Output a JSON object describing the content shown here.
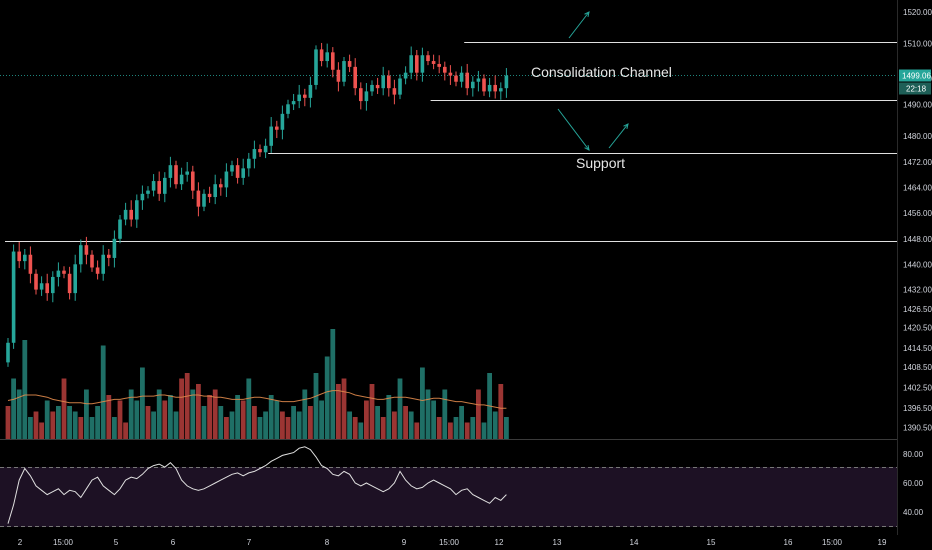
{
  "chart_data": {
    "type": "candlestick",
    "price_axis": {
      "ylim": [
        1386,
        1522
      ],
      "ticks": [
        "1520.00",
        "1510.00",
        "1498.00",
        "1490.00",
        "1480.00",
        "1472.00",
        "1464.00",
        "1456.00",
        "1448.00",
        "1440.00",
        "1432.00",
        "1426.50",
        "1420.50",
        "1414.50",
        "1408.50",
        "1402.50",
        "1396.50",
        "1390.50"
      ]
    },
    "time_axis": {
      "ticks": [
        "2",
        "15:00",
        "5",
        "6",
        "7",
        "8",
        "9",
        "15:00",
        "12",
        "13",
        "14",
        "15",
        "16",
        "15:00",
        "19"
      ]
    },
    "last_price": {
      "value": 1499.06,
      "label": "1499.06",
      "countdown": "22:18"
    },
    "levels": [
      {
        "price": 1510.4,
        "from_bar": 82
      },
      {
        "price": 1491.2,
        "from_bar": 76
      },
      {
        "price": 1474.8,
        "from_bar": 47
      },
      {
        "price": 1447.2,
        "from_bar": 0
      }
    ],
    "annotations": {
      "channel": "Consolidation Channel",
      "support": "Support"
    },
    "colors": {
      "up": "#26a69a",
      "down": "#ef5350",
      "vol_up": "#1f6f66",
      "vol_down": "#9b3533",
      "rsi_line": "#e0e0e0",
      "rsi_band": "#1d1124",
      "level": "#e0e0e0",
      "arrow": "#26a69a",
      "last_price_tag": "#26a69a"
    },
    "candles_close": [
      1416,
      1444,
      1441,
      1443,
      1437,
      1432,
      1434,
      1431,
      1436,
      1438,
      1437,
      1431,
      1440,
      1446,
      1443,
      1439,
      1437,
      1443,
      1442,
      1448,
      1454,
      1457,
      1454,
      1460,
      1462,
      1463,
      1466,
      1462,
      1467,
      1471,
      1465,
      1468,
      1469,
      1463,
      1458,
      1462,
      1461,
      1465,
      1464,
      1469,
      1471,
      1467,
      1470,
      1473,
      1476,
      1475,
      1477,
      1483,
      1482,
      1487,
      1490,
      1491,
      1493,
      1492,
      1496,
      1508,
      1504,
      1507,
      1501,
      1497,
      1504,
      1502,
      1495,
      1491,
      1494,
      1496,
      1495,
      1499,
      1495,
      1493,
      1498,
      1500,
      1506,
      1500,
      1506,
      1504,
      1503,
      1502,
      1500,
      1499,
      1497,
      1500,
      1495,
      1497,
      1498,
      1494,
      1496,
      1494,
      1495,
      1499
    ],
    "volume": [
      {
        "v": 0.3,
        "up": false
      },
      {
        "v": 0.55,
        "up": true
      },
      {
        "v": 0.45,
        "up": true
      },
      {
        "v": 0.9,
        "up": true
      },
      {
        "v": 0.2,
        "up": true
      },
      {
        "v": 0.25,
        "up": false
      },
      {
        "v": 0.15,
        "up": false
      },
      {
        "v": 0.35,
        "up": true
      },
      {
        "v": 0.25,
        "up": false
      },
      {
        "v": 0.3,
        "up": true
      },
      {
        "v": 0.55,
        "up": false
      },
      {
        "v": 0.3,
        "up": true
      },
      {
        "v": 0.25,
        "up": true
      },
      {
        "v": 0.2,
        "up": false
      },
      {
        "v": 0.45,
        "up": true
      },
      {
        "v": 0.2,
        "up": true
      },
      {
        "v": 0.3,
        "up": true
      },
      {
        "v": 0.85,
        "up": true
      },
      {
        "v": 0.4,
        "up": false
      },
      {
        "v": 0.2,
        "up": true
      },
      {
        "v": 0.35,
        "up": false
      },
      {
        "v": 0.15,
        "up": false
      },
      {
        "v": 0.45,
        "up": true
      },
      {
        "v": 0.35,
        "up": true
      },
      {
        "v": 0.65,
        "up": true
      },
      {
        "v": 0.3,
        "up": false
      },
      {
        "v": 0.25,
        "up": true
      },
      {
        "v": 0.45,
        "up": true
      },
      {
        "v": 0.35,
        "up": false
      },
      {
        "v": 0.4,
        "up": true
      },
      {
        "v": 0.25,
        "up": true
      },
      {
        "v": 0.55,
        "up": false
      },
      {
        "v": 0.6,
        "up": false
      },
      {
        "v": 0.45,
        "up": true
      },
      {
        "v": 0.5,
        "up": false
      },
      {
        "v": 0.3,
        "up": true
      },
      {
        "v": 0.4,
        "up": false
      },
      {
        "v": 0.45,
        "up": false
      },
      {
        "v": 0.3,
        "up": true
      },
      {
        "v": 0.2,
        "up": false
      },
      {
        "v": 0.25,
        "up": true
      },
      {
        "v": 0.4,
        "up": true
      },
      {
        "v": 0.35,
        "up": false
      },
      {
        "v": 0.55,
        "up": true
      },
      {
        "v": 0.3,
        "up": false
      },
      {
        "v": 0.2,
        "up": true
      },
      {
        "v": 0.25,
        "up": true
      },
      {
        "v": 0.4,
        "up": true
      },
      {
        "v": 0.35,
        "up": true
      },
      {
        "v": 0.25,
        "up": false
      },
      {
        "v": 0.2,
        "up": false
      },
      {
        "v": 0.3,
        "up": true
      },
      {
        "v": 0.25,
        "up": true
      },
      {
        "v": 0.45,
        "up": true
      },
      {
        "v": 0.3,
        "up": false
      },
      {
        "v": 0.6,
        "up": true
      },
      {
        "v": 0.35,
        "up": true
      },
      {
        "v": 0.75,
        "up": true
      },
      {
        "v": 1.0,
        "up": true
      },
      {
        "v": 0.5,
        "up": false
      },
      {
        "v": 0.55,
        "up": false
      },
      {
        "v": 0.25,
        "up": true
      },
      {
        "v": 0.2,
        "up": false
      },
      {
        "v": 0.15,
        "up": true
      },
      {
        "v": 0.35,
        "up": false
      },
      {
        "v": 0.5,
        "up": false
      },
      {
        "v": 0.3,
        "up": true
      },
      {
        "v": 0.2,
        "up": false
      },
      {
        "v": 0.4,
        "up": true
      },
      {
        "v": 0.25,
        "up": false
      },
      {
        "v": 0.55,
        "up": true
      },
      {
        "v": 0.3,
        "up": false
      },
      {
        "v": 0.25,
        "up": true
      },
      {
        "v": 0.15,
        "up": false
      },
      {
        "v": 0.65,
        "up": true
      },
      {
        "v": 0.45,
        "up": true
      },
      {
        "v": 0.35,
        "up": true
      },
      {
        "v": 0.2,
        "up": false
      },
      {
        "v": 0.45,
        "up": true
      },
      {
        "v": 0.15,
        "up": false
      },
      {
        "v": 0.2,
        "up": true
      },
      {
        "v": 0.3,
        "up": true
      },
      {
        "v": 0.15,
        "up": false
      },
      {
        "v": 0.2,
        "up": true
      },
      {
        "v": 0.45,
        "up": false
      },
      {
        "v": 0.15,
        "up": true
      },
      {
        "v": 0.6,
        "up": true
      },
      {
        "v": 0.25,
        "up": true
      },
      {
        "v": 0.5,
        "up": false
      },
      {
        "v": 0.2,
        "up": true
      }
    ],
    "volume_ma": [
      0.35,
      0.36,
      0.38,
      0.4,
      0.4,
      0.4,
      0.39,
      0.38,
      0.36,
      0.35,
      0.34,
      0.33,
      0.33,
      0.33,
      0.32,
      0.32,
      0.33,
      0.34,
      0.35,
      0.36,
      0.36,
      0.37,
      0.38,
      0.38,
      0.39,
      0.39,
      0.39,
      0.4,
      0.4,
      0.39,
      0.38,
      0.38,
      0.39,
      0.4,
      0.4,
      0.39,
      0.39,
      0.38,
      0.38,
      0.37,
      0.36,
      0.36,
      0.36,
      0.37,
      0.38,
      0.38,
      0.37,
      0.36,
      0.35,
      0.34,
      0.34,
      0.34,
      0.35,
      0.36,
      0.37,
      0.39,
      0.41,
      0.43,
      0.44,
      0.44,
      0.43,
      0.42,
      0.4,
      0.39,
      0.38,
      0.37,
      0.36,
      0.36,
      0.37,
      0.38,
      0.38,
      0.38,
      0.37,
      0.36,
      0.35,
      0.36,
      0.37,
      0.37,
      0.36,
      0.35,
      0.34,
      0.34,
      0.33,
      0.32,
      0.31,
      0.31,
      0.3,
      0.29,
      0.28,
      0.28
    ],
    "rsi": {
      "ylim": [
        30,
        90
      ],
      "ticks": [
        "80.00",
        "60.00",
        "40.00"
      ],
      "bands": [
        70,
        30
      ],
      "values": [
        32,
        45,
        62,
        70,
        65,
        58,
        55,
        52,
        54,
        56,
        52,
        55,
        54,
        50,
        56,
        62,
        64,
        58,
        55,
        52,
        56,
        62,
        64,
        63,
        66,
        70,
        72,
        73,
        71,
        74,
        70,
        62,
        58,
        56,
        55,
        56,
        58,
        60,
        62,
        64,
        66,
        67,
        65,
        67,
        68,
        70,
        72,
        75,
        77,
        79,
        80,
        81,
        84,
        85,
        83,
        78,
        72,
        70,
        66,
        65,
        68,
        66,
        60,
        58,
        60,
        58,
        56,
        54,
        56,
        60,
        68,
        62,
        58,
        56,
        57,
        60,
        62,
        60,
        58,
        56,
        52,
        55,
        56,
        52,
        50,
        48,
        46,
        50,
        48,
        52
      ]
    }
  }
}
